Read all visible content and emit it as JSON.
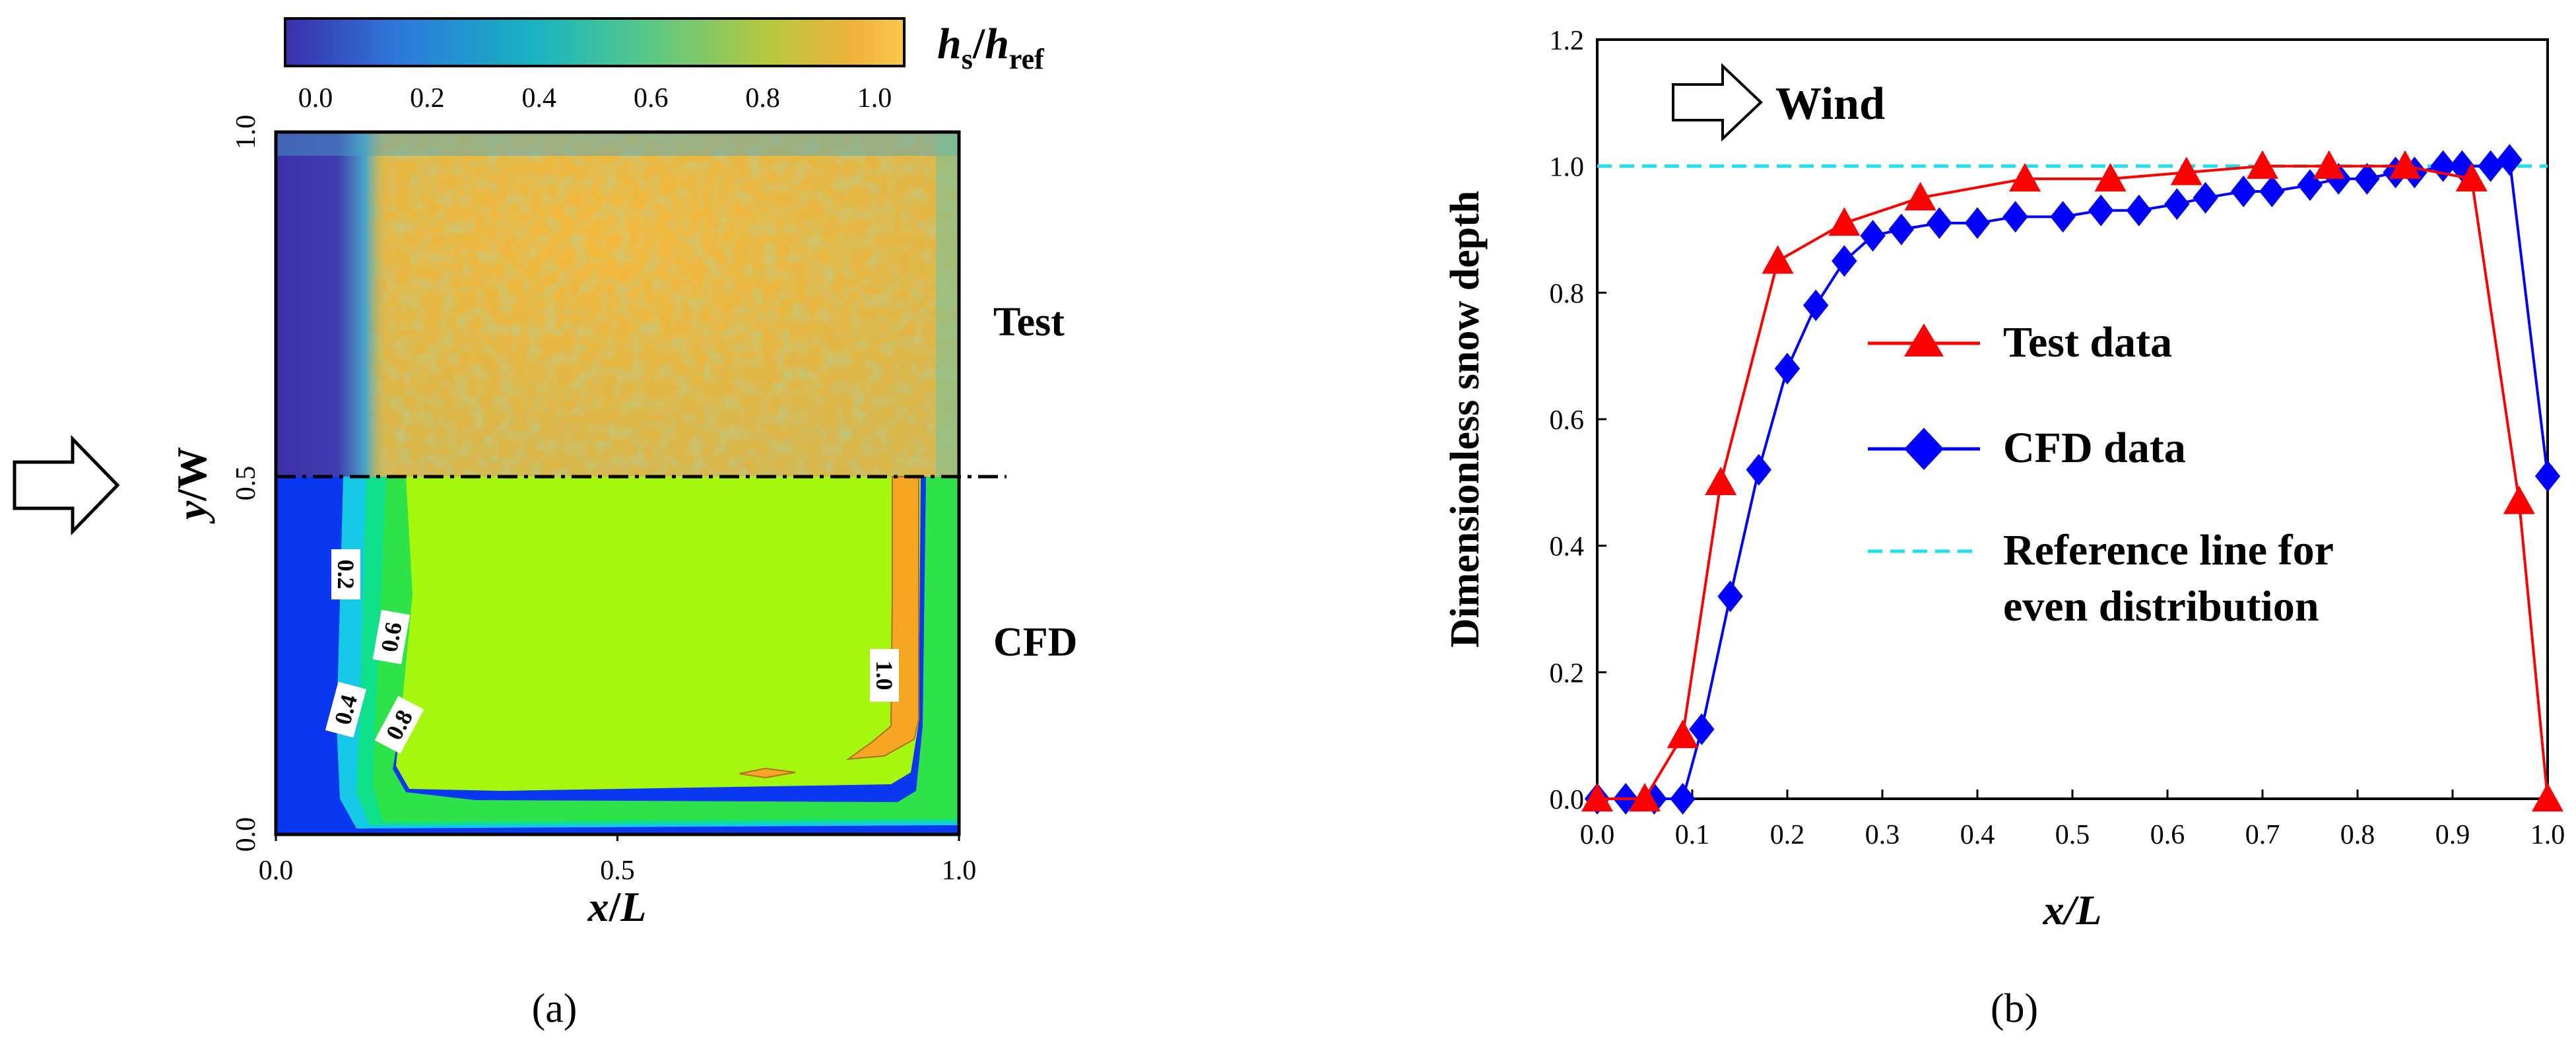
{
  "colors": {
    "test_series": "#ff0000",
    "cfd_series": "#0000ff",
    "reference_line": "#1de0f0",
    "colorbar_stops": [
      "#3b2fa8",
      "#2d78d9",
      "#17b3c4",
      "#55c889",
      "#b5c83e",
      "#f2b23c",
      "#fbc84c"
    ]
  },
  "panel_a": {
    "label": "(a)",
    "colorbar": {
      "title_main": "h",
      "title_sub1": "s",
      "title_slash": "/",
      "title_main2": "h",
      "title_sub2": "ref",
      "ticks": [
        "0.0",
        "0.2",
        "0.4",
        "0.6",
        "0.8",
        "1.0"
      ]
    },
    "wind_icon": "right-arrow-outline-icon",
    "xaxis": {
      "title_var": "x",
      "title_slash": "/",
      "title_var2": "L",
      "ticks": [
        "0.0",
        "0.5",
        "1.0"
      ]
    },
    "yaxis": {
      "title_var": "y",
      "title_slash": "/",
      "title_var2": "W",
      "ticks": [
        "0.0",
        "0.5",
        "1.0"
      ]
    },
    "region_labels": {
      "top": "Test",
      "bottom": "CFD"
    },
    "contour_labels": [
      "0.2",
      "0.4",
      "0.6",
      "0.8",
      "1.0"
    ]
  },
  "chart_data": {
    "type": "line",
    "title": "",
    "panel_label": "(b)",
    "xlabel": "x/L",
    "ylabel": "Dimensionless snow depth",
    "xlim": [
      0.0,
      1.0
    ],
    "ylim": [
      0.0,
      1.2
    ],
    "xticks": [
      "0.0",
      "0.1",
      "0.2",
      "0.3",
      "0.4",
      "0.5",
      "0.6",
      "0.7",
      "0.8",
      "0.9",
      "1.0"
    ],
    "yticks": [
      "0.0",
      "0.2",
      "0.4",
      "0.6",
      "0.8",
      "1.0",
      "1.2"
    ],
    "annotation": "Wind",
    "legend": {
      "test": "Test data",
      "cfd": "CFD data",
      "ref_line1": "Reference line for",
      "ref_line2": "even distribution"
    },
    "series": [
      {
        "name": "Test data",
        "marker": "triangle",
        "x": [
          0.0,
          0.05,
          0.09,
          0.13,
          0.19,
          0.26,
          0.34,
          0.45,
          0.54,
          0.62,
          0.7,
          0.77,
          0.85,
          0.92,
          0.97,
          1.0
        ],
        "y": [
          0.0,
          0.0,
          0.1,
          0.5,
          0.85,
          0.91,
          0.95,
          0.98,
          0.98,
          0.99,
          1.0,
          1.0,
          1.0,
          0.98,
          0.47,
          0.0
        ]
      },
      {
        "name": "CFD data",
        "marker": "diamond",
        "x": [
          0.0,
          0.03,
          0.06,
          0.09,
          0.11,
          0.14,
          0.17,
          0.2,
          0.23,
          0.26,
          0.29,
          0.32,
          0.36,
          0.4,
          0.44,
          0.49,
          0.53,
          0.57,
          0.61,
          0.64,
          0.68,
          0.71,
          0.75,
          0.78,
          0.81,
          0.84,
          0.86,
          0.89,
          0.91,
          0.94,
          0.96,
          1.0
        ],
        "y": [
          0.0,
          0.0,
          0.0,
          0.0,
          0.11,
          0.32,
          0.52,
          0.68,
          0.78,
          0.85,
          0.89,
          0.9,
          0.91,
          0.91,
          0.92,
          0.92,
          0.93,
          0.93,
          0.94,
          0.95,
          0.96,
          0.96,
          0.97,
          0.98,
          0.98,
          0.99,
          0.99,
          1.0,
          1.0,
          1.0,
          1.01,
          0.51
        ]
      },
      {
        "name": "Reference line for even distribution",
        "style": "dashed",
        "x": [
          0.0,
          1.0
        ],
        "y": [
          1.0,
          1.0
        ]
      }
    ]
  }
}
